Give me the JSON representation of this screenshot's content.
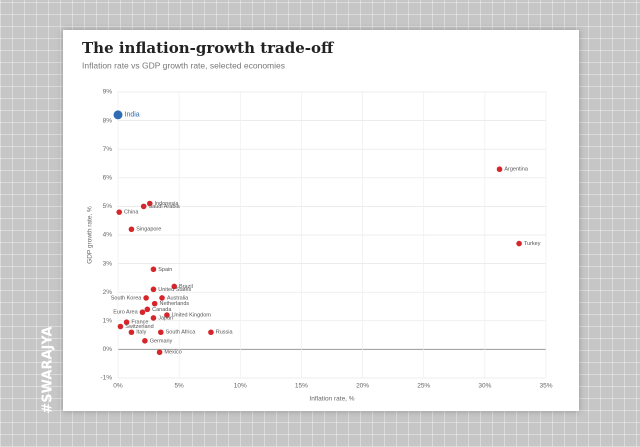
{
  "chart_data": {
    "type": "scatter",
    "title": "The inflation-growth trade-off",
    "subtitle": "Inflation rate vs GDP growth rate, selected economies",
    "x_label": "Inflation rate, %",
    "y_label": "GDP growth rate, %",
    "watermark": "#SWARAJYA",
    "xlim": [
      0,
      35
    ],
    "ylim": [
      -1,
      9
    ],
    "xticks": [
      {
        "value": 0,
        "label": "0%"
      },
      {
        "value": 5,
        "label": "5%"
      },
      {
        "value": 10,
        "label": "10%"
      },
      {
        "value": 15,
        "label": "15%"
      },
      {
        "value": 20,
        "label": "20%"
      },
      {
        "value": 25,
        "label": "25%"
      },
      {
        "value": 30,
        "label": "30%"
      },
      {
        "value": 35,
        "label": "35%"
      }
    ],
    "yticks": [
      {
        "value": -1,
        "label": "-1%"
      },
      {
        "value": 0,
        "label": "0%"
      },
      {
        "value": 1,
        "label": "1%"
      },
      {
        "value": 2,
        "label": "2%"
      },
      {
        "value": 3,
        "label": "3%"
      },
      {
        "value": 4,
        "label": "4%"
      },
      {
        "value": 5,
        "label": "5%"
      },
      {
        "value": 6,
        "label": "6%"
      },
      {
        "value": 7,
        "label": "7%"
      },
      {
        "value": 8,
        "label": "8%"
      },
      {
        "value": 9,
        "label": "9%"
      }
    ],
    "grid": true,
    "series": [
      {
        "color": "#2e6db4",
        "size": 4.5,
        "labels": [
          "India"
        ],
        "x": [
          0.0
        ],
        "y": [
          8.2
        ]
      },
      {
        "color": "#d7262b",
        "size": 2.8,
        "labels": [
          "Argentina",
          "Turkey",
          "Indonesia",
          "Saudi Arabia",
          "China",
          "Singapore",
          "Spain",
          "Brazil",
          "United States",
          "South Korea",
          "Australia",
          "Netherlands",
          "Euro Area",
          "Canada",
          "United Kingdom",
          "Japan",
          "France",
          "Switzerland",
          "Italy",
          "South Africa",
          "Russia",
          "Germany",
          "Mexico"
        ],
        "x": [
          31.2,
          32.8,
          2.6,
          2.1,
          0.1,
          1.1,
          2.9,
          4.6,
          2.9,
          2.3,
          3.6,
          3.0,
          2.0,
          2.4,
          4.0,
          2.9,
          0.7,
          0.2,
          1.1,
          3.5,
          7.6,
          2.2,
          3.4
        ],
        "y": [
          6.3,
          3.7,
          5.1,
          5.0,
          4.8,
          4.2,
          2.8,
          2.2,
          2.1,
          1.8,
          1.8,
          1.6,
          1.3,
          1.4,
          1.2,
          1.1,
          0.95,
          0.8,
          0.6,
          0.6,
          0.6,
          0.3,
          -0.1
        ]
      }
    ]
  }
}
